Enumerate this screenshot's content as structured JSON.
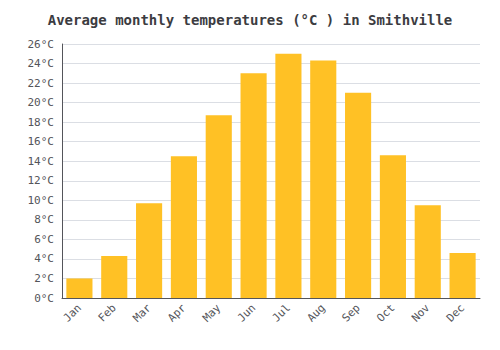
{
  "chart_data": {
    "type": "bar",
    "title": "Average monthly temperatures (°C ) in Smithville",
    "categories": [
      "Jan",
      "Feb",
      "Mar",
      "Apr",
      "May",
      "Jun",
      "Jul",
      "Aug",
      "Sep",
      "Oct",
      "Nov",
      "Dec"
    ],
    "values": [
      2,
      4.3,
      9.7,
      14.5,
      18.7,
      23,
      25,
      24.3,
      21,
      14.6,
      9.5,
      4.6
    ],
    "color": "#FFC125",
    "ylim": [
      0,
      26
    ],
    "yticks": [
      {
        "value": 0,
        "label": "0°C"
      },
      {
        "value": 2,
        "label": "2°C"
      },
      {
        "value": 4,
        "label": "4°C"
      },
      {
        "value": 6,
        "label": "6°C"
      },
      {
        "value": 8,
        "label": "8°C"
      },
      {
        "value": 10,
        "label": "10°C"
      },
      {
        "value": 12,
        "label": "12°C"
      },
      {
        "value": 14,
        "label": "14°C"
      },
      {
        "value": 16,
        "label": "16°C"
      },
      {
        "value": 18,
        "label": "18°C"
      },
      {
        "value": 20,
        "label": "20°C"
      },
      {
        "value": 22,
        "label": "22°C"
      },
      {
        "value": 24,
        "label": "24°C"
      },
      {
        "value": 26,
        "label": "26°C"
      }
    ],
    "grid": true
  }
}
